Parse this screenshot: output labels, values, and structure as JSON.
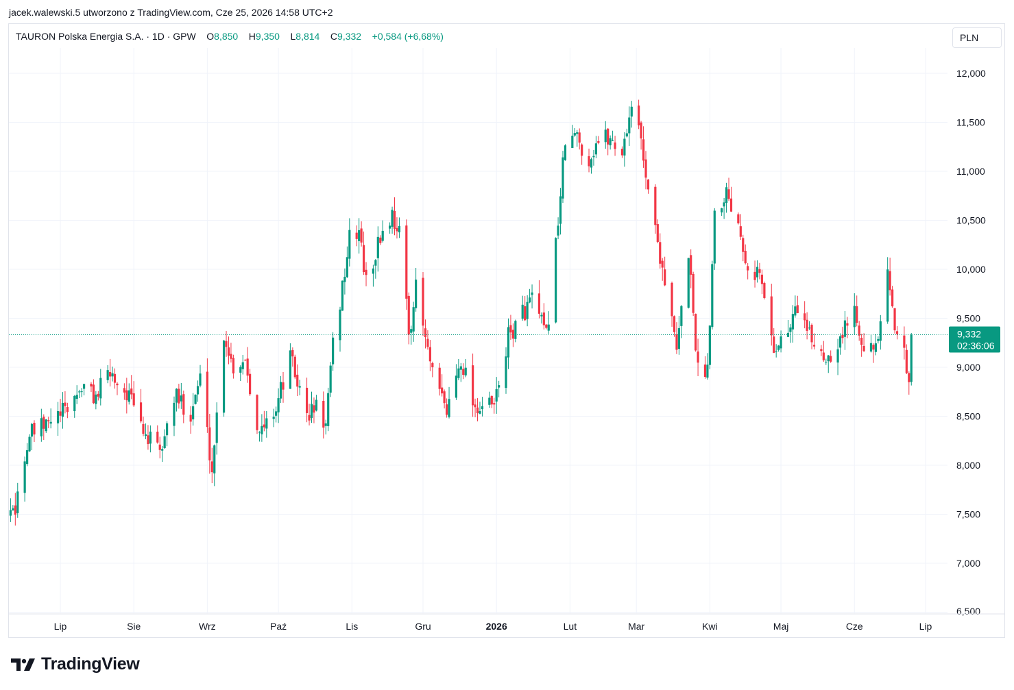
{
  "header": {
    "attribution": "jacek.walewski.5 utworzono z TradingView.com, Cze 25, 2026 14:58 UTC+2"
  },
  "legend": {
    "symbol": "TAURON Polska Energia S.A. · 1D · GPW",
    "o_label": "O",
    "o_value": "8,850",
    "h_label": "H",
    "h_value": "9,350",
    "l_label": "L",
    "l_value": "8,814",
    "c_label": "C",
    "c_value": "9,332",
    "change": "+0,584 (+6,68%)"
  },
  "currency": "PLN",
  "brand": {
    "name": "TradingView"
  },
  "colors": {
    "up": "#089981",
    "down": "#f23645",
    "grid": "#f0f3fa",
    "text": "#131722"
  },
  "chart_data": {
    "type": "candlestick",
    "currency": "PLN",
    "ylim": [
      6.5,
      12.3
    ],
    "y_ticks": [
      {
        "value": 6.5,
        "label": "6,500"
      },
      {
        "value": 7.0,
        "label": "7,000"
      },
      {
        "value": 7.5,
        "label": "7,500"
      },
      {
        "value": 8.0,
        "label": "8,000"
      },
      {
        "value": 8.5,
        "label": "8,500"
      },
      {
        "value": 9.0,
        "label": "9,000"
      },
      {
        "value": 9.5,
        "label": "9,500"
      },
      {
        "value": 10.0,
        "label": "10,000"
      },
      {
        "value": 10.5,
        "label": "10,500"
      },
      {
        "value": 11.0,
        "label": "11,000"
      },
      {
        "value": 11.5,
        "label": "11,500"
      },
      {
        "value": 12.0,
        "label": "12,000"
      }
    ],
    "x_ticks": [
      {
        "label": "Lip",
        "date": "2025-07-01",
        "bold": false
      },
      {
        "label": "Sie",
        "date": "2025-08-01",
        "bold": false
      },
      {
        "label": "Wrz",
        "date": "2025-09-01",
        "bold": false
      },
      {
        "label": "Paź",
        "date": "2025-10-01",
        "bold": false
      },
      {
        "label": "Lis",
        "date": "2025-11-01",
        "bold": false
      },
      {
        "label": "Gru",
        "date": "2025-12-01",
        "bold": false
      },
      {
        "label": "2026",
        "date": "2026-01-01",
        "bold": true
      },
      {
        "label": "Lut",
        "date": "2026-02-01",
        "bold": false
      },
      {
        "label": "Mar",
        "date": "2026-03-01",
        "bold": false
      },
      {
        "label": "Kwi",
        "date": "2026-04-01",
        "bold": false
      },
      {
        "label": "Maj",
        "date": "2026-05-01",
        "bold": false
      },
      {
        "label": "Cze",
        "date": "2026-06-01",
        "bold": false
      },
      {
        "label": "Lip",
        "date": "2026-07-01",
        "bold": false
      }
    ],
    "last_price": {
      "value": 9.332,
      "label": "9,332",
      "countdown": "02:36:06"
    },
    "keypoints": [
      [
        "2025-06-02",
        6.95
      ],
      [
        "2025-06-06",
        7.4
      ],
      [
        "2025-06-12",
        7.6
      ],
      [
        "2025-06-18",
        8.3
      ],
      [
        "2025-06-25",
        8.4
      ],
      [
        "2025-07-03",
        8.55
      ],
      [
        "2025-07-10",
        8.8
      ],
      [
        "2025-07-16",
        8.7
      ],
      [
        "2025-07-22",
        8.95
      ],
      [
        "2025-07-30",
        8.7
      ],
      [
        "2025-08-05",
        8.35
      ],
      [
        "2025-08-12",
        8.1
      ],
      [
        "2025-08-18",
        8.7
      ],
      [
        "2025-08-25",
        8.55
      ],
      [
        "2025-08-29",
        8.9
      ],
      [
        "2025-09-03",
        7.95
      ],
      [
        "2025-09-08",
        9.35
      ],
      [
        "2025-09-12",
        9.0
      ],
      [
        "2025-09-17",
        9.1
      ],
      [
        "2025-09-23",
        8.3
      ],
      [
        "2025-09-30",
        8.6
      ],
      [
        "2025-10-06",
        9.1
      ],
      [
        "2025-10-13",
        8.5
      ],
      [
        "2025-10-17",
        8.6
      ],
      [
        "2025-10-21",
        8.4
      ],
      [
        "2025-10-24",
        9.2
      ],
      [
        "2025-10-31",
        10.3
      ],
      [
        "2025-11-04",
        10.4
      ],
      [
        "2025-11-07",
        9.85
      ],
      [
        "2025-11-14",
        10.4
      ],
      [
        "2025-11-18",
        10.55
      ],
      [
        "2025-11-21",
        10.4
      ],
      [
        "2025-11-25",
        9.35
      ],
      [
        "2025-11-28",
        9.8
      ],
      [
        "2025-12-05",
        8.9
      ],
      [
        "2025-12-11",
        8.55
      ],
      [
        "2025-12-17",
        9.1
      ],
      [
        "2025-12-23",
        8.6
      ],
      [
        "2025-12-31",
        8.6
      ],
      [
        "2026-01-06",
        9.3
      ],
      [
        "2026-01-12",
        9.55
      ],
      [
        "2026-01-16",
        9.7
      ],
      [
        "2026-01-22",
        9.3
      ],
      [
        "2026-01-27",
        10.5
      ],
      [
        "2026-01-30",
        11.3
      ],
      [
        "2026-02-04",
        11.35
      ],
      [
        "2026-02-09",
        11.1
      ],
      [
        "2026-02-12",
        11.3
      ],
      [
        "2026-02-17",
        11.35
      ],
      [
        "2026-02-23",
        11.2
      ],
      [
        "2026-02-27",
        11.7
      ],
      [
        "2026-03-03",
        11.3
      ],
      [
        "2026-03-09",
        10.4
      ],
      [
        "2026-03-13",
        9.9
      ],
      [
        "2026-03-18",
        9.15
      ],
      [
        "2026-03-23",
        10.2
      ],
      [
        "2026-03-27",
        8.95
      ],
      [
        "2026-03-31",
        9.0
      ],
      [
        "2026-04-03",
        10.6
      ],
      [
        "2026-04-08",
        10.8
      ],
      [
        "2026-04-13",
        10.5
      ],
      [
        "2026-04-17",
        10.05
      ],
      [
        "2026-04-22",
        9.95
      ],
      [
        "2026-04-28",
        9.2
      ],
      [
        "2026-05-04",
        9.35
      ],
      [
        "2026-05-08",
        9.65
      ],
      [
        "2026-05-13",
        9.3
      ],
      [
        "2026-05-20",
        9.1
      ],
      [
        "2026-05-26",
        9.3
      ],
      [
        "2026-06-01",
        9.6
      ],
      [
        "2026-06-05",
        9.25
      ],
      [
        "2026-06-10",
        9.15
      ],
      [
        "2026-06-15",
        9.9
      ],
      [
        "2026-06-18",
        9.4
      ],
      [
        "2026-06-22",
        9.3
      ],
      [
        "2026-06-24",
        8.75
      ],
      [
        "2026-06-25",
        9.332
      ]
    ]
  }
}
